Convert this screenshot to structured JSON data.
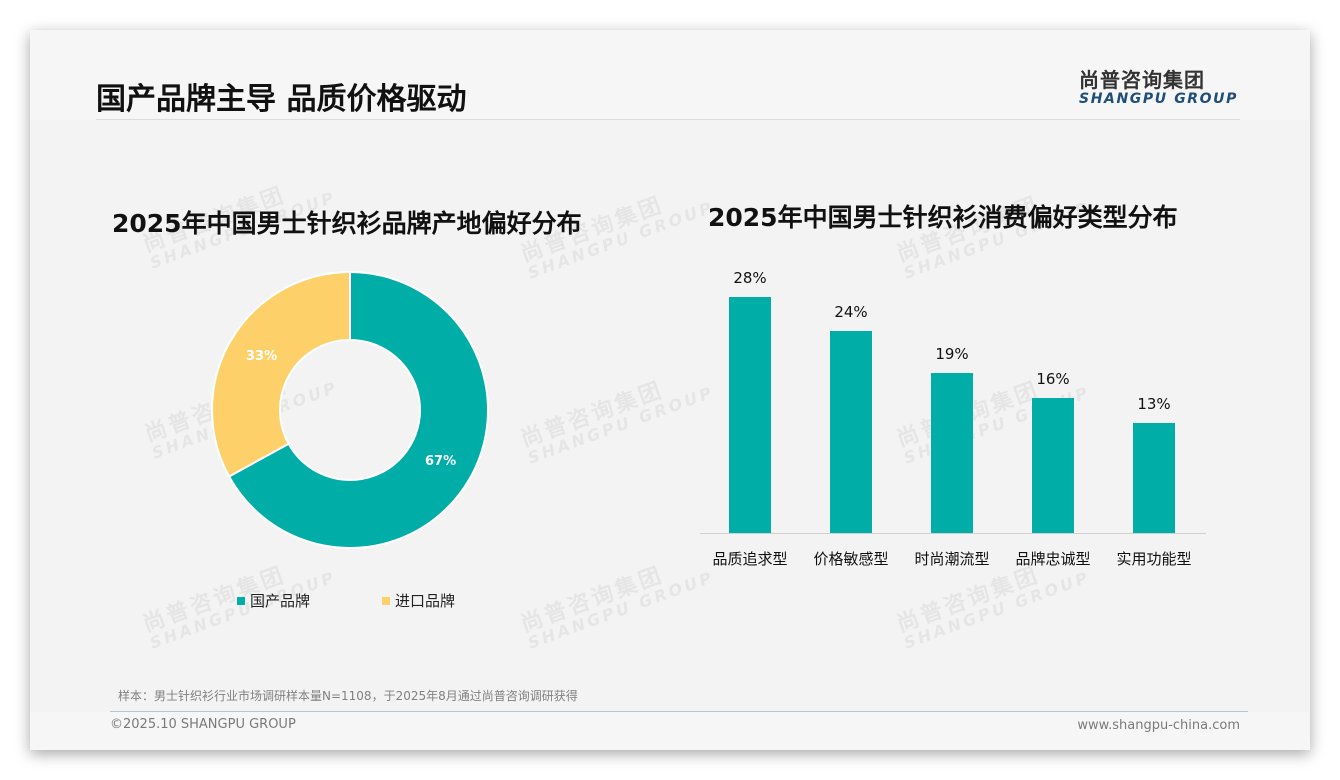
{
  "header": {
    "title": "国产品牌主导 品质价格驱动",
    "logo_cn": "尚普咨询集团",
    "logo_en": "SHANGPU GROUP"
  },
  "watermark": {
    "cn": "尚普咨询集团",
    "en": "SHANGPU GROUP"
  },
  "colors": {
    "teal": "#00aea7",
    "yellow": "#fdd06a",
    "logo_blue": "#1f4e79"
  },
  "donut": {
    "title": "2025年中国男士针织衫品牌产地偏好分布",
    "slices": [
      {
        "label": "国产品牌",
        "value": 67,
        "display": "67%",
        "color": "#00aea7"
      },
      {
        "label": "进口品牌",
        "value": 33,
        "display": "33%",
        "color": "#fdd06a"
      }
    ]
  },
  "bars": {
    "title": "2025年中国男士针织衫消费偏好类型分布",
    "items": [
      {
        "label": "品质追求型",
        "value": 28,
        "display": "28%"
      },
      {
        "label": "价格敏感型",
        "value": 24,
        "display": "24%"
      },
      {
        "label": "时尚潮流型",
        "value": 19,
        "display": "19%"
      },
      {
        "label": "品牌忠诚型",
        "value": 16,
        "display": "16%"
      },
      {
        "label": "实用功能型",
        "value": 13,
        "display": "13%"
      }
    ]
  },
  "chart_data": [
    {
      "type": "pie",
      "title": "2025年中国男士针织衫品牌产地偏好分布",
      "categories": [
        "国产品牌",
        "进口品牌"
      ],
      "values": [
        67,
        33
      ],
      "unit": "%",
      "legend_position": "bottom",
      "donut": true
    },
    {
      "type": "bar",
      "title": "2025年中国男士针织衫消费偏好类型分布",
      "categories": [
        "品质追求型",
        "价格敏感型",
        "时尚潮流型",
        "品牌忠诚型",
        "实用功能型"
      ],
      "values": [
        28,
        24,
        19,
        16,
        13
      ],
      "unit": "%",
      "xlabel": "",
      "ylabel": "",
      "grid": false,
      "data_labels": true
    }
  ],
  "footer": {
    "note": "样本：男士针织衫行业市场调研样本量N=1108，于2025年8月通过尚普咨询调研获得",
    "copyright": "©2025.10 SHANGPU GROUP",
    "website": "www.shangpu-china.com"
  }
}
